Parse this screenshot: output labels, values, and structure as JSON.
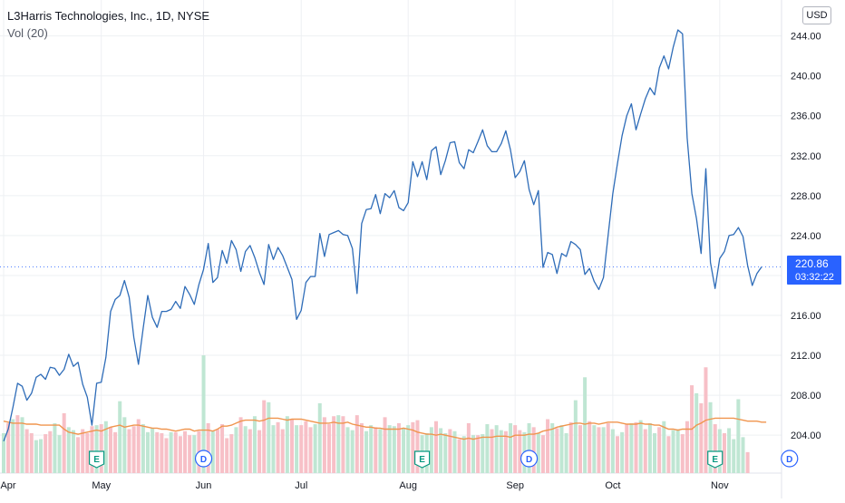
{
  "legend": {
    "title": "L3Harris Technologies, Inc., 1D, NYSE",
    "volume_label": "Vol (20)"
  },
  "price_axis": {
    "currency": "USD",
    "current_price": "220.86",
    "countdown": "03:32:22"
  },
  "colors": {
    "price_line": "#2e6cb8",
    "ma_line": "#f0954e",
    "vol_up": "#bfe6d3",
    "vol_down": "#f7c0c7",
    "grid": "#eef0f3",
    "earnings_marker": "#089981",
    "dividend_marker": "#2962ff",
    "price_tag": "#2962ff"
  },
  "chart_data": {
    "type": "line",
    "ylim": [
      200.2,
      247.6
    ],
    "y_ticks": [
      "244.00",
      "240.00",
      "236.00",
      "232.00",
      "228.00",
      "224.00",
      "220.00",
      "216.00",
      "212.00",
      "208.00",
      "204.00"
    ],
    "x_ticks": [
      "Apr",
      "May",
      "Jun",
      "Jul",
      "Aug",
      "Sep",
      "Oct",
      "Nov"
    ],
    "current_price": 220.86,
    "price_close": [
      203.4,
      204.6,
      206.8,
      209.2,
      208.9,
      207.5,
      208.2,
      209.8,
      210.1,
      209.6,
      210.8,
      210.7,
      210.0,
      210.6,
      212.1,
      210.9,
      211.3,
      209.1,
      207.8,
      205.0,
      209.2,
      209.3,
      211.8,
      216.4,
      217.6,
      218.0,
      219.5,
      217.8,
      213.8,
      211.1,
      214.7,
      218.0,
      215.8,
      214.8,
      216.4,
      216.4,
      216.6,
      217.4,
      216.7,
      218.9,
      218.1,
      217.1,
      219.1,
      220.6,
      223.2,
      219.3,
      219.8,
      222.5,
      221.2,
      223.5,
      222.6,
      220.4,
      222.4,
      223.0,
      221.8,
      220.3,
      219.1,
      223.1,
      221.6,
      222.8,
      222.0,
      220.8,
      219.6,
      215.6,
      216.5,
      219.3,
      219.9,
      219.9,
      224.2,
      221.9,
      224.1,
      224.3,
      224.5,
      224.1,
      224.0,
      222.7,
      218.2,
      225.2,
      226.6,
      226.7,
      228.1,
      226.2,
      228.2,
      227.8,
      228.5,
      226.8,
      226.5,
      227.3,
      231.4,
      229.9,
      231.4,
      229.6,
      232.5,
      232.9,
      230.1,
      231.5,
      233.3,
      233.4,
      231.3,
      230.7,
      232.6,
      232.3,
      233.4,
      234.6,
      233.0,
      232.4,
      232.4,
      233.2,
      234.5,
      232.6,
      229.8,
      230.4,
      231.5,
      228.6,
      227.1,
      228.5,
      220.8,
      222.3,
      222.1,
      220.2,
      222.2,
      221.9,
      223.4,
      223.1,
      222.6,
      220.1,
      220.7,
      219.4,
      218.6,
      219.8,
      224.0,
      228.2,
      231.2,
      234.0,
      236.0,
      237.2,
      234.6,
      236.2,
      237.7,
      238.8,
      238.1,
      240.8,
      242.0,
      240.7,
      242.9,
      244.6,
      244.2,
      233.8,
      228.2,
      225.7,
      222.2,
      230.7,
      221.3,
      218.7,
      221.7,
      222.4,
      224.0,
      224.1,
      224.8,
      223.9,
      221.0,
      219.0,
      220.2,
      220.86
    ],
    "volume_ma": [
      205.4,
      205.3,
      205.2,
      205.2,
      205.2,
      205.1,
      205.1,
      205.1,
      205.0,
      205.0,
      205.0,
      205.0,
      205.0,
      204.6,
      204.3,
      204.2,
      204.1,
      204.2,
      204.3,
      204.4,
      204.5,
      204.4,
      204.6,
      204.8,
      204.9,
      205.0,
      204.8,
      204.9,
      205.0,
      205.0,
      204.9,
      204.8,
      204.7,
      204.7,
      204.6,
      204.6,
      204.5,
      204.4,
      204.5,
      204.6,
      204.6,
      204.4,
      204.5,
      204.5,
      204.5,
      204.4,
      204.6,
      204.9,
      204.9,
      205.0,
      205.2,
      205.4,
      205.5,
      205.5,
      205.5,
      205.4,
      205.5,
      205.7,
      205.7,
      205.7,
      205.6,
      205.5,
      205.6,
      205.6,
      205.6,
      205.5,
      205.4,
      205.3,
      205.2,
      205.2,
      205.2,
      205.3,
      205.2,
      205.2,
      205.3,
      205.1,
      205.0,
      204.9,
      204.8,
      204.8,
      204.7,
      204.7,
      204.6,
      204.6,
      204.6,
      204.6,
      204.7,
      204.6,
      204.5,
      204.3,
      204.2,
      204.1,
      204.1,
      204.0,
      204.1,
      204.0,
      203.9,
      203.8,
      203.7,
      203.6,
      203.7,
      203.6,
      203.7,
      203.8,
      203.8,
      203.8,
      203.9,
      203.9,
      203.9,
      203.8,
      204.0,
      204.0,
      204.0,
      204.1,
      204.1,
      204.2,
      204.4,
      204.5,
      204.6,
      204.8,
      204.9,
      205.0,
      205.1,
      205.2,
      205.2,
      205.1,
      205.2,
      205.2,
      205.1,
      205.2,
      205.3,
      205.3,
      205.3,
      205.2,
      205.1,
      205.1,
      205.1,
      205.2,
      205.1,
      205.1,
      205.0,
      205.0,
      204.8,
      204.6,
      204.6,
      204.5,
      204.6,
      204.6,
      204.6,
      205.0,
      205.2,
      205.5,
      205.6,
      205.7,
      205.7,
      205.7,
      205.7,
      205.7,
      205.6,
      205.5,
      205.4,
      205.4,
      205.4,
      205.3,
      205.3
    ],
    "volume_bars": [
      {
        "top": 204.2,
        "up": true
      },
      {
        "top": 205.2,
        "up": false
      },
      {
        "top": 205.6,
        "up": true
      },
      {
        "top": 206.0,
        "up": false
      },
      {
        "top": 205.8,
        "up": true
      },
      {
        "top": 204.6,
        "up": false
      },
      {
        "top": 204.2,
        "up": false
      },
      {
        "top": 203.5,
        "up": true
      },
      {
        "top": 203.6,
        "up": true
      },
      {
        "top": 204.1,
        "up": false
      },
      {
        "top": 204.4,
        "up": false
      },
      {
        "top": 205.2,
        "up": true
      },
      {
        "top": 204.0,
        "up": true
      },
      {
        "top": 206.2,
        "up": false
      },
      {
        "top": 204.8,
        "up": true
      },
      {
        "top": 204.5,
        "up": true
      },
      {
        "top": 203.8,
        "up": false
      },
      {
        "top": 204.6,
        "up": false
      },
      {
        "top": 204.2,
        "up": false
      },
      {
        "top": 204.9,
        "up": false
      },
      {
        "top": 205.0,
        "up": true
      },
      {
        "top": 205.1,
        "up": false
      },
      {
        "top": 205.4,
        "up": true
      },
      {
        "top": 204.8,
        "up": false
      },
      {
        "top": 204.3,
        "up": false
      },
      {
        "top": 207.4,
        "up": true
      },
      {
        "top": 205.8,
        "up": true
      },
      {
        "top": 204.6,
        "up": false
      },
      {
        "top": 204.9,
        "up": false
      },
      {
        "top": 205.6,
        "up": false
      },
      {
        "top": 205.1,
        "up": true
      },
      {
        "top": 204.3,
        "up": true
      },
      {
        "top": 204.7,
        "up": true
      },
      {
        "top": 204.3,
        "up": false
      },
      {
        "top": 204.2,
        "up": false
      },
      {
        "top": 203.7,
        "up": false
      },
      {
        "top": 204.3,
        "up": true
      },
      {
        "top": 204.3,
        "up": false
      },
      {
        "top": 203.9,
        "up": false
      },
      {
        "top": 204.4,
        "up": false
      },
      {
        "top": 204.0,
        "up": false
      },
      {
        "top": 204.0,
        "up": true
      },
      {
        "top": 204.4,
        "up": false
      },
      {
        "top": 212.0,
        "up": true
      },
      {
        "top": 205.2,
        "up": false
      },
      {
        "top": 204.4,
        "up": true
      },
      {
        "top": 204.6,
        "up": false
      },
      {
        "top": 205.1,
        "up": false
      },
      {
        "top": 203.7,
        "up": false
      },
      {
        "top": 204.1,
        "up": false
      },
      {
        "top": 204.8,
        "up": true
      },
      {
        "top": 205.8,
        "up": false
      },
      {
        "top": 204.9,
        "up": true
      },
      {
        "top": 204.6,
        "up": false
      },
      {
        "top": 205.9,
        "up": true
      },
      {
        "top": 204.5,
        "up": false
      },
      {
        "top": 207.5,
        "up": false
      },
      {
        "top": 207.3,
        "up": true
      },
      {
        "top": 205.0,
        "up": true
      },
      {
        "top": 205.3,
        "up": false
      },
      {
        "top": 204.6,
        "up": false
      },
      {
        "top": 205.9,
        "up": true
      },
      {
        "top": 205.6,
        "up": false
      },
      {
        "top": 205.0,
        "up": true
      },
      {
        "top": 205.0,
        "up": false
      },
      {
        "top": 205.4,
        "up": false
      },
      {
        "top": 204.8,
        "up": false
      },
      {
        "top": 205.1,
        "up": true
      },
      {
        "top": 207.2,
        "up": true
      },
      {
        "top": 205.8,
        "up": false
      },
      {
        "top": 205.1,
        "up": false
      },
      {
        "top": 205.9,
        "up": false
      },
      {
        "top": 206.0,
        "up": true
      },
      {
        "top": 205.9,
        "up": false
      },
      {
        "top": 204.8,
        "up": true
      },
      {
        "top": 204.5,
        "up": true
      },
      {
        "top": 206.0,
        "up": false
      },
      {
        "top": 205.2,
        "up": false
      },
      {
        "top": 204.4,
        "up": true
      },
      {
        "top": 205.0,
        "up": true
      },
      {
        "top": 204.8,
        "up": false
      },
      {
        "top": 204.6,
        "up": true
      },
      {
        "top": 205.8,
        "up": false
      },
      {
        "top": 205.0,
        "up": true
      },
      {
        "top": 204.9,
        "up": true
      },
      {
        "top": 205.2,
        "up": false
      },
      {
        "top": 204.7,
        "up": true
      },
      {
        "top": 205.0,
        "up": true
      },
      {
        "top": 205.3,
        "up": false
      },
      {
        "top": 205.5,
        "up": false
      },
      {
        "top": 204.0,
        "up": true
      },
      {
        "top": 204.2,
        "up": true
      },
      {
        "top": 204.8,
        "up": true
      },
      {
        "top": 205.4,
        "up": false
      },
      {
        "top": 204.7,
        "up": true
      },
      {
        "top": 204.2,
        "up": true
      },
      {
        "top": 204.6,
        "up": false
      },
      {
        "top": 204.4,
        "up": true
      },
      {
        "top": 203.6,
        "up": false
      },
      {
        "top": 203.9,
        "up": true
      },
      {
        "top": 205.2,
        "up": false
      },
      {
        "top": 204.0,
        "up": true
      },
      {
        "top": 204.0,
        "up": false
      },
      {
        "top": 204.1,
        "up": true
      },
      {
        "top": 205.1,
        "up": true
      },
      {
        "top": 204.6,
        "up": false
      },
      {
        "top": 205.0,
        "up": true
      },
      {
        "top": 204.5,
        "up": true
      },
      {
        "top": 204.4,
        "up": false
      },
      {
        "top": 205.2,
        "up": true
      },
      {
        "top": 205.0,
        "up": false
      },
      {
        "top": 204.5,
        "up": false
      },
      {
        "top": 204.3,
        "up": true
      },
      {
        "top": 205.2,
        "up": true
      },
      {
        "top": 204.8,
        "up": false
      },
      {
        "top": 204.2,
        "up": true
      },
      {
        "top": 204.0,
        "up": false
      },
      {
        "top": 205.6,
        "up": false
      },
      {
        "top": 205.2,
        "up": true
      },
      {
        "top": 204.7,
        "up": false
      },
      {
        "top": 205.0,
        "up": true
      },
      {
        "top": 204.2,
        "up": true
      },
      {
        "top": 205.3,
        "up": false
      },
      {
        "top": 207.5,
        "up": true
      },
      {
        "top": 205.0,
        "up": false
      },
      {
        "top": 209.8,
        "up": true
      },
      {
        "top": 205.4,
        "up": false
      },
      {
        "top": 205.0,
        "up": true
      },
      {
        "top": 204.8,
        "up": false
      },
      {
        "top": 204.8,
        "up": true
      },
      {
        "top": 205.2,
        "up": false
      },
      {
        "top": 204.6,
        "up": true
      },
      {
        "top": 203.9,
        "up": false
      },
      {
        "top": 204.3,
        "up": true
      },
      {
        "top": 205.1,
        "up": false
      },
      {
        "top": 205.2,
        "up": true
      },
      {
        "top": 205.3,
        "up": false
      },
      {
        "top": 205.5,
        "up": true
      },
      {
        "top": 204.6,
        "up": false
      },
      {
        "top": 205.2,
        "up": true
      },
      {
        "top": 204.2,
        "up": true
      },
      {
        "top": 204.8,
        "up": false
      },
      {
        "top": 205.4,
        "up": true
      },
      {
        "top": 203.9,
        "up": false
      },
      {
        "top": 204.5,
        "up": true
      },
      {
        "top": 204.6,
        "up": true
      },
      {
        "top": 204.1,
        "up": false
      },
      {
        "top": 205.4,
        "up": false
      },
      {
        "top": 209.0,
        "up": false
      },
      {
        "top": 208.2,
        "up": true
      },
      {
        "top": 207.2,
        "up": false
      },
      {
        "top": 210.8,
        "up": false
      },
      {
        "top": 207.3,
        "up": true
      },
      {
        "top": 205.1,
        "up": false
      },
      {
        "top": 204.6,
        "up": true
      },
      {
        "top": 204.2,
        "up": false
      },
      {
        "top": 204.7,
        "up": true
      },
      {
        "top": 203.6,
        "up": true
      },
      {
        "top": 207.6,
        "up": true
      },
      {
        "top": 203.8,
        "up": true
      },
      {
        "top": 202.3,
        "up": false
      }
    ],
    "events": [
      {
        "type": "earnings",
        "label": "E",
        "index": 20
      },
      {
        "type": "dividend",
        "label": "D",
        "index": 43
      },
      {
        "type": "earnings",
        "label": "E",
        "index": 90
      },
      {
        "type": "dividend",
        "label": "D",
        "index": 113
      },
      {
        "type": "earnings",
        "label": "E",
        "index": 153
      },
      {
        "type": "dividend",
        "label": "D",
        "index": 169
      }
    ],
    "month_start_index": [
      0,
      21,
      43,
      64,
      87,
      110,
      131,
      154
    ]
  }
}
